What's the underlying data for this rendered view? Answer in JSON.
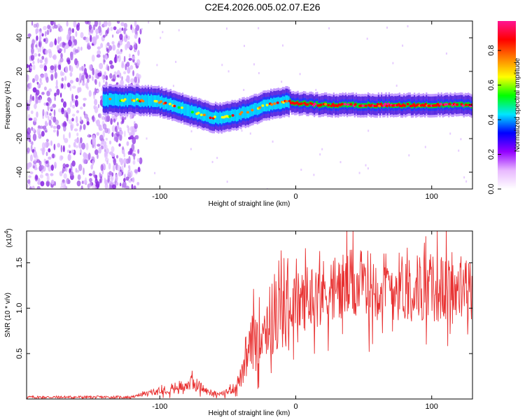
{
  "title": "C2E4.2026.005.02.07.E26",
  "chart_data": [
    {
      "type": "heatmap",
      "name": "spectrogram",
      "xlabel": "Height of straight line (km)",
      "ylabel": "Frequency (Hz)",
      "xlim": [
        -198,
        130
      ],
      "ylim": [
        -50,
        50
      ],
      "xticks": [
        -100,
        0,
        100
      ],
      "yticks": [
        -40,
        -20,
        0,
        20,
        40
      ],
      "colorbar": {
        "label": "Normalized spectral amplitude",
        "range": [
          0,
          0.97
        ],
        "ticks": [
          0.0,
          0.2,
          0.4,
          0.6,
          0.8
        ],
        "colormap": [
          "#ffffff",
          "#e8b8ff",
          "#9400ff",
          "#0000ff",
          "#00e6ff",
          "#00ff00",
          "#ffff00",
          "#ff8000",
          "#ff0000",
          "#ff1493"
        ]
      },
      "ridge": {
        "description": "strong signal ridge; frequency (Hz) vs height (km)",
        "x": [
          -142,
          -120,
          -100,
          -80,
          -65,
          -55,
          -45,
          -35,
          -25,
          -15,
          -5,
          0,
          20,
          60,
          100,
          130
        ],
        "y": [
          3,
          3,
          2,
          -3,
          -7,
          -8,
          -6,
          -4,
          -1,
          1,
          2,
          1,
          0,
          0,
          0,
          0
        ],
        "peak_amplitude": 0.95
      },
      "noise_region_x": [
        -198,
        -120
      ]
    },
    {
      "type": "line",
      "name": "snr",
      "xlabel": "Height of straight line (km)",
      "ylabel": "SNR (10 * v/v)",
      "multiplier": "(x10",
      "multiplier_exp": "4",
      "multiplier_close": ")",
      "xlim": [
        -198,
        130
      ],
      "ylim": [
        0,
        1.85
      ],
      "xticks": [
        -100,
        0,
        100
      ],
      "yticks": [
        0.5,
        1.0,
        1.5
      ],
      "ytick_labels": [
        "0.5",
        "1.0",
        "1.5"
      ],
      "color": "#e83030",
      "envelope": {
        "x": [
          -198,
          -120,
          -110,
          -90,
          -75,
          -65,
          -55,
          -45,
          -38,
          -34,
          -28,
          -20,
          -10,
          0,
          10,
          20,
          30,
          40,
          60,
          80,
          100,
          115,
          130
        ],
        "y": [
          0.02,
          0.02,
          0.06,
          0.12,
          0.18,
          0.08,
          0.05,
          0.12,
          0.3,
          0.55,
          0.75,
          0.85,
          0.95,
          1.05,
          1.12,
          1.18,
          1.22,
          1.25,
          1.25,
          1.24,
          1.22,
          1.2,
          1.2
        ]
      }
    }
  ]
}
